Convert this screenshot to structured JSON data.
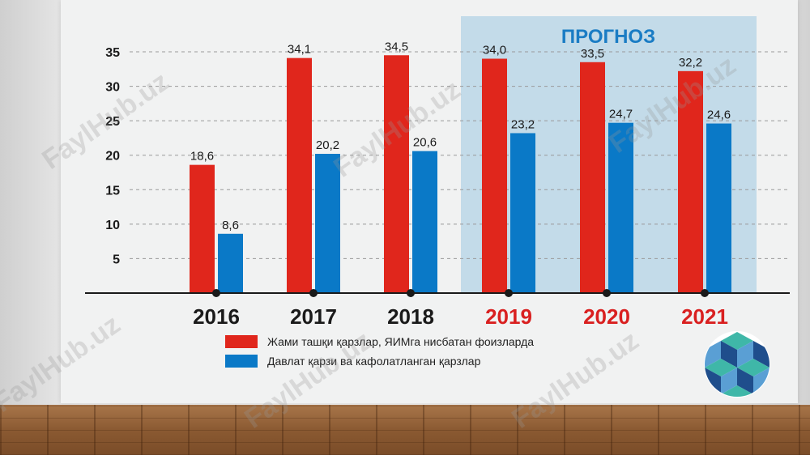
{
  "forecast_label": "ПРОГНОЗ",
  "watermark_text": "FaylHub.uz",
  "colors": {
    "red": "#e0261c",
    "blue": "#0a79c7",
    "forecast_text": "#1a7cc4",
    "forecast_bg": "#c3dbe9",
    "year_forecast": "#d92020",
    "year_actual": "#1a1a1a"
  },
  "logo_icon": "cube-pattern-logo-icon",
  "chart_data": {
    "type": "bar",
    "categories": [
      "2016",
      "2017",
      "2018",
      "2019",
      "2020",
      "2021"
    ],
    "forecast_categories": [
      "2019",
      "2020",
      "2021"
    ],
    "series": [
      {
        "name": "Жами ташқи қарзлар, ЯИМга нисбатан фоизларда",
        "color": "#e0261c",
        "values": [
          18.6,
          34.1,
          34.5,
          34.0,
          33.5,
          32.2
        ],
        "labels": [
          "18,6",
          "34,1",
          "34,5",
          "34,0",
          "33,5",
          "32,2"
        ]
      },
      {
        "name": "Давлат қарзи ва кафолатланган қарзлар",
        "color": "#0a79c7",
        "values": [
          8.6,
          20.2,
          20.6,
          23.2,
          24.7,
          24.6
        ],
        "labels": [
          "8,6",
          "20,2",
          "20,6",
          "23,2",
          "24,7",
          "24,6"
        ]
      }
    ],
    "yticks": [
      "5",
      "10",
      "15",
      "20",
      "25",
      "30",
      "35"
    ],
    "ylim": [
      0,
      35
    ],
    "grid": true,
    "legend_position": "bottom"
  }
}
